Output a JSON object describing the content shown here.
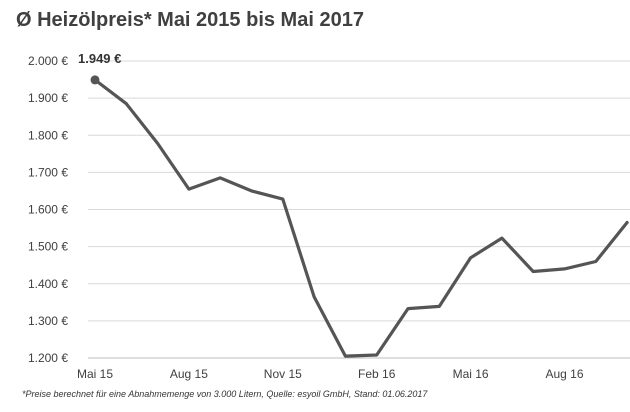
{
  "chart_data": {
    "type": "line",
    "title": "Ø Heizölpreis* Mai 2015 bis Mai 2017",
    "xlabel": "",
    "ylabel": "",
    "x_tick_labels": [
      "Mai 15",
      "Aug 15",
      "Nov 15",
      "Feb 16",
      "Mai 16",
      "Aug 16"
    ],
    "y_ticks": [
      {
        "value": 1200,
        "label": "1.200 €"
      },
      {
        "value": 1300,
        "label": "1.300 €"
      },
      {
        "value": 1400,
        "label": "1.400 €"
      },
      {
        "value": 1500,
        "label": "1.500 €"
      },
      {
        "value": 1600,
        "label": "1.600 €"
      },
      {
        "value": 1700,
        "label": "1.700 €"
      },
      {
        "value": 1800,
        "label": "1.800 €"
      },
      {
        "value": 1900,
        "label": "1.900 €"
      },
      {
        "value": 2000,
        "label": "2.000 €"
      }
    ],
    "ylim": [
      1200,
      2000
    ],
    "grid": true,
    "series": [
      {
        "color": "#555555",
        "points": [
          {
            "x": "2015-05-01",
            "y": 1949
          },
          {
            "x": "2015-06-01",
            "y": 1885
          },
          {
            "x": "2015-07-01",
            "y": 1778
          },
          {
            "x": "2015-08-01",
            "y": 1655
          },
          {
            "x": "2015-09-01",
            "y": 1685
          },
          {
            "x": "2015-10-01",
            "y": 1650
          },
          {
            "x": "2015-11-01",
            "y": 1628
          },
          {
            "x": "2015-12-01",
            "y": 1365
          },
          {
            "x": "2016-01-01",
            "y": 1205
          },
          {
            "x": "2016-02-01",
            "y": 1208
          },
          {
            "x": "2016-03-01",
            "y": 1333
          },
          {
            "x": "2016-04-01",
            "y": 1339
          },
          {
            "x": "2016-05-01",
            "y": 1470
          },
          {
            "x": "2016-06-01",
            "y": 1523
          },
          {
            "x": "2016-07-01",
            "y": 1433
          },
          {
            "x": "2016-08-01",
            "y": 1440
          },
          {
            "x": "2016-09-01",
            "y": 1460
          },
          {
            "x": "2016-10-01",
            "y": 1565
          }
        ]
      }
    ],
    "annotations": [
      {
        "text": "1.949 €",
        "x": "2015-05-01",
        "y": 1949
      }
    ],
    "footnote": "*Preise berechnet für eine Abnahmemenge von 3.000 Litern, Quelle: esyoil GmbH, Stand: 01.06.2017"
  }
}
